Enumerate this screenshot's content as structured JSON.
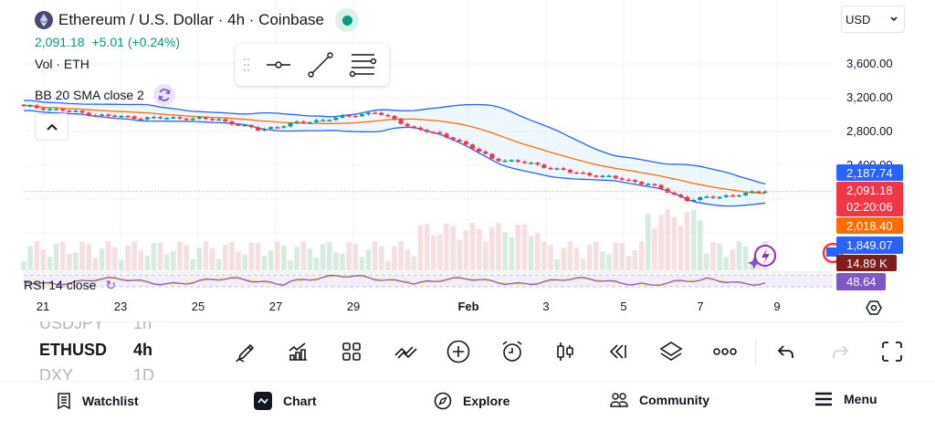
{
  "header": {
    "title": "Ethereum / U.S. Dollar · 4h · Coinbase",
    "symbol_icon": "ethereum-logo",
    "market_status": "open",
    "market_status_color": "#089981"
  },
  "quote": {
    "last": "2,091.18",
    "change": "+5.01",
    "change_pct": "(+0.24%)",
    "color": "#089981"
  },
  "indicators": {
    "volume_label": "Vol · ETH",
    "bb_label": "BB 20 SMA close 2",
    "rsi_label": "RSI 14 close"
  },
  "drawing_toolbar": {
    "tools": [
      "horizontal-line-tool",
      "trend-line-tool",
      "fib-retracement-tool"
    ]
  },
  "currency": {
    "selected": "USD"
  },
  "price_axis": {
    "labels": [
      "3,600.00",
      "3,200.00",
      "2,800.00",
      "2,400.00"
    ]
  },
  "price_tags": {
    "bb_upper": "2,187.74",
    "last_price": "2,091.18",
    "countdown": "02:20:06",
    "bb_basis": "2,018.40",
    "bb_lower": "1,849.07",
    "volume": "14.89 K",
    "rsi": "48.64"
  },
  "time_axis": {
    "labels": [
      "21",
      "23",
      "25",
      "27",
      "29",
      "Feb",
      "3",
      "5",
      "7",
      "9"
    ]
  },
  "symbol_picker": {
    "rows": [
      {
        "symbol": "USDJPY",
        "interval": "1h",
        "state": "dim"
      },
      {
        "symbol": "ETHUSD",
        "interval": "4h",
        "state": "active"
      },
      {
        "symbol": "DXY",
        "interval": "1D",
        "state": "dim"
      }
    ]
  },
  "bottom_toolbar": {
    "buttons": [
      "draw",
      "indicators",
      "layout-grid",
      "compare",
      "add",
      "alert",
      "chart-type",
      "replay",
      "objects-tree",
      "more",
      "undo",
      "redo",
      "fullscreen"
    ]
  },
  "nav": {
    "items": [
      {
        "label": "Watchlist",
        "icon": "watchlist-icon"
      },
      {
        "label": "Chart",
        "icon": "chart-icon"
      },
      {
        "label": "Explore",
        "icon": "compass-icon"
      },
      {
        "label": "Community",
        "icon": "community-icon"
      },
      {
        "label": "Menu",
        "icon": "menu-icon"
      }
    ]
  },
  "colors": {
    "up": "#089981",
    "down": "#f23645",
    "bb_band": "#2962ff",
    "bb_basis": "#ff6d00",
    "bb_fill": "#e3f2fd",
    "rsi_line": "#7e57c2",
    "rsi_ma": "#fdd835"
  },
  "chart_data": {
    "type": "candlestick",
    "title": "Ethereum / U.S. Dollar · 4h · Coinbase",
    "x_ticks": [
      "21",
      "23",
      "25",
      "27",
      "29",
      "Feb",
      "3",
      "5",
      "7",
      "9"
    ],
    "y_ticks": [
      3600,
      3200,
      2800,
      2400
    ],
    "approx_close_path": [
      {
        "date": "Jan 20",
        "close": 3100
      },
      {
        "date": "Jan 21",
        "close": 3050
      },
      {
        "date": "Jan 22",
        "close": 2990
      },
      {
        "date": "Jan 23",
        "close": 2960
      },
      {
        "date": "Jan 24",
        "close": 2960
      },
      {
        "date": "Jan 25",
        "close": 2940
      },
      {
        "date": "Jan 26",
        "close": 2820
      },
      {
        "date": "Jan 27",
        "close": 2900
      },
      {
        "date": "Jan 28",
        "close": 2960
      },
      {
        "date": "Jan 29",
        "close": 3030
      },
      {
        "date": "Jan 30",
        "close": 2840
      },
      {
        "date": "Jan 31",
        "close": 2720
      },
      {
        "date": "Feb 1",
        "close": 2480
      },
      {
        "date": "Feb 2",
        "close": 2420
      },
      {
        "date": "Feb 3",
        "close": 2320
      },
      {
        "date": "Feb 4",
        "close": 2260
      },
      {
        "date": "Feb 5",
        "close": 2180
      },
      {
        "date": "Feb 6",
        "close": 1990
      },
      {
        "date": "Feb 7",
        "close": 2040
      },
      {
        "date": "Feb 8",
        "close": 2091.18
      }
    ],
    "bollinger": {
      "upper": 2187.74,
      "basis": 2018.4,
      "lower": 1849.07
    },
    "volume_last": "14.89 K",
    "rsi_last": 48.64
  }
}
